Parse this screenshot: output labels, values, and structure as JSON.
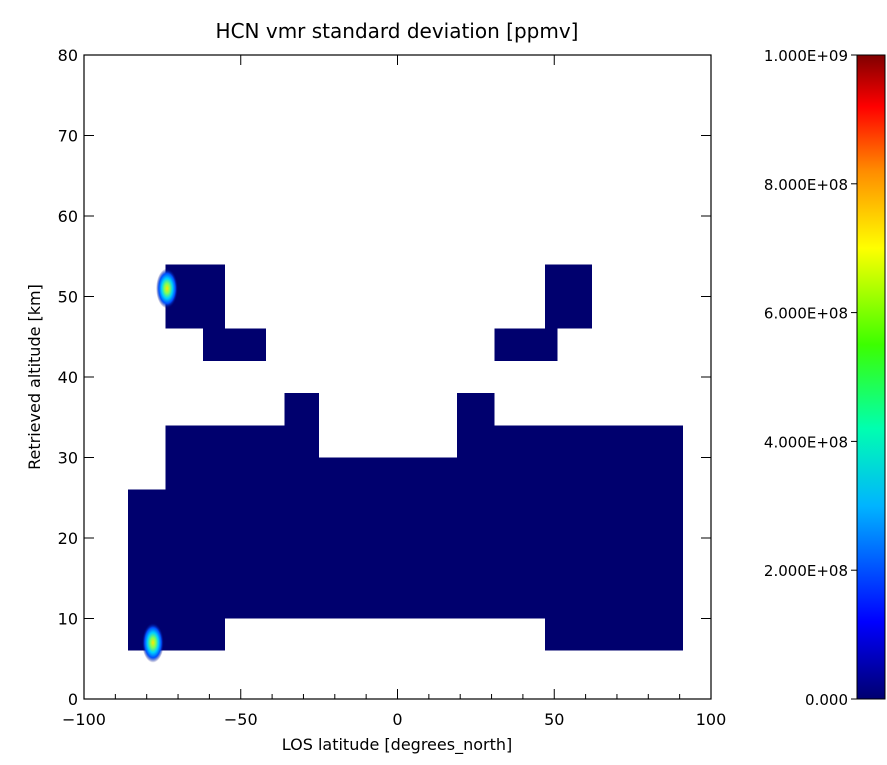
{
  "chart_data": {
    "type": "heatmap",
    "title": "HCN vmr standard deviation [ppmv]",
    "xlabel": "LOS latitude [degrees_north]",
    "ylabel": "Retrieved altitude [km]",
    "xlim": [
      -100,
      100
    ],
    "ylim": [
      0,
      80
    ],
    "x_ticks": [
      "−100",
      "−50",
      "0",
      "50",
      "100"
    ],
    "y_ticks": [
      "0",
      "10",
      "20",
      "30",
      "40",
      "50",
      "60",
      "70",
      "80"
    ],
    "colorbar": {
      "range": [
        0,
        1000000000
      ],
      "tick_labels": [
        "0.000",
        "2.000E+08",
        "4.000E+08",
        "6.000E+08",
        "8.000E+08",
        "1.000E+09"
      ],
      "colormap": "rainbow"
    },
    "fill_value": 0,
    "fill_color": "#00006e",
    "data_regions": [
      {
        "lat": [
          -86,
          -74
        ],
        "alt": [
          6,
          26
        ]
      },
      {
        "lat": [
          -74,
          -55
        ],
        "alt": [
          6,
          34
        ]
      },
      {
        "lat": [
          -55,
          -36
        ],
        "alt": [
          10,
          34
        ]
      },
      {
        "lat": [
          -36,
          -25
        ],
        "alt": [
          10,
          38
        ]
      },
      {
        "lat": [
          -25,
          19
        ],
        "alt": [
          10,
          30
        ]
      },
      {
        "lat": [
          19,
          31
        ],
        "alt": [
          10,
          38
        ]
      },
      {
        "lat": [
          31,
          47
        ],
        "alt": [
          10,
          34
        ]
      },
      {
        "lat": [
          47,
          91
        ],
        "alt": [
          6,
          34
        ]
      },
      {
        "lat": [
          -74,
          -55
        ],
        "alt": [
          46,
          54
        ]
      },
      {
        "lat": [
          -62,
          -42
        ],
        "alt": [
          42,
          46
        ]
      },
      {
        "lat": [
          -62,
          -55
        ],
        "alt": [
          46,
          50
        ]
      },
      {
        "lat": [
          47,
          62
        ],
        "alt": [
          46,
          54
        ]
      },
      {
        "lat": [
          31,
          51
        ],
        "alt": [
          42,
          46
        ]
      }
    ],
    "hotspots": [
      {
        "lat": -78,
        "alt": 7,
        "value": 650000000
      },
      {
        "lat": -73.5,
        "alt": 51,
        "value": 650000000
      }
    ],
    "grid": false,
    "legend": "colorbar-right"
  }
}
